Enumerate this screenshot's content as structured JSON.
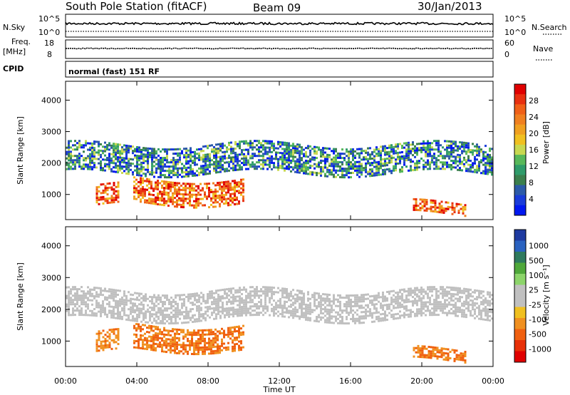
{
  "header": {
    "station": "South Pole Station (fitACF)",
    "beam": "Beam 09",
    "date": "30/Jan/2013"
  },
  "summary_panels": {
    "nsky_label": "N.Sky",
    "nsky_ticks": [
      "10^5",
      "10^0"
    ],
    "nsearch_label": "N.Search",
    "nsearch_ticks": [
      "10^5",
      "10^0"
    ],
    "freq_label": "Freq.",
    "freq_unit": "[MHz]",
    "freq_ticks": [
      "18",
      "8"
    ],
    "nave_label": "Nave",
    "nave_ticks": [
      "60",
      "0"
    ],
    "cpid_label": "CPID",
    "cpid_value": "normal (fast) 151 RF"
  },
  "chart_data": [
    {
      "type": "heatmap",
      "name": "power",
      "ylabel": "Slant Range [km]",
      "ylim": [
        200,
        4600
      ],
      "yticks": [
        1000,
        2000,
        3000,
        4000
      ],
      "xlim": [
        0,
        24
      ],
      "colorbar": {
        "label": "Power [dB]",
        "ticks": [
          "4",
          "8",
          "12",
          "16",
          "20",
          "24",
          "28"
        ],
        "colors": [
          "#0018f0",
          "#1a3cd8",
          "#2c5aa8",
          "#3b7f4d",
          "#2f9b6a",
          "#58b85a",
          "#c8d850",
          "#f0c020",
          "#f0a020",
          "#f08020",
          "#f06018",
          "#e83010",
          "#e00000"
        ]
      },
      "echo_bands": [
        {
          "t": [
            1.7,
            3.0
          ],
          "range": [
            650,
            1300
          ],
          "level": 26
        },
        {
          "t": [
            3.8,
            10.0
          ],
          "range": [
            700,
            1500
          ],
          "level": 30
        },
        {
          "t": [
            0.0,
            24.0
          ],
          "range": [
            1700,
            2600
          ],
          "level": 10
        },
        {
          "t": [
            19.5,
            22.5
          ],
          "range": [
            400,
            750
          ],
          "level": 26
        }
      ]
    },
    {
      "type": "heatmap",
      "name": "velocity",
      "ylabel": "Slant Range [km]",
      "ylim": [
        200,
        4600
      ],
      "yticks": [
        1000,
        2000,
        3000,
        4000
      ],
      "xlim": [
        0,
        24
      ],
      "xticks": [
        "00:00",
        "04:00",
        "08:00",
        "12:00",
        "16:00",
        "20:00",
        "00:00"
      ],
      "xlabel": "Time UT",
      "colorbar": {
        "label": "Velocity [m s⁻¹]",
        "ticks": [
          "1000",
          "500",
          "100",
          "25",
          "-25",
          "-100",
          "-500",
          "-1000"
        ],
        "colors": [
          "#1e3aa0",
          "#2a62c0",
          "#2f7a5e",
          "#4fa83a",
          "#8cd46a",
          "#c0c0c0",
          "#c0c0c0",
          "#f0c020",
          "#f09020",
          "#f06010",
          "#e83008",
          "#e00000"
        ]
      },
      "echo_bands": [
        {
          "t": [
            1.7,
            3.0
          ],
          "range": [
            650,
            1300
          ],
          "velocity": -300
        },
        {
          "t": [
            3.8,
            10.0
          ],
          "range": [
            700,
            1500
          ],
          "velocity": -400
        },
        {
          "t": [
            0.0,
            24.0
          ],
          "range": [
            1700,
            2600
          ],
          "velocity": 0
        },
        {
          "t": [
            19.5,
            22.5
          ],
          "range": [
            400,
            750
          ],
          "velocity": -500
        }
      ]
    }
  ]
}
